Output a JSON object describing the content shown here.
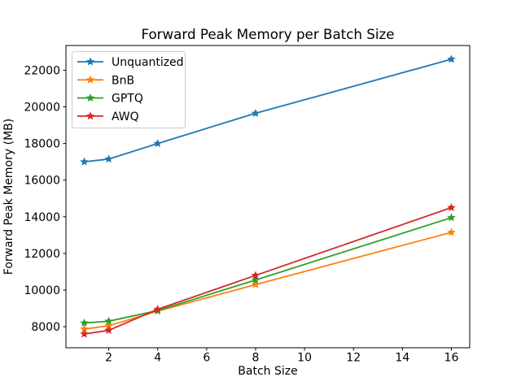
{
  "chart_data": {
    "type": "line",
    "title": "Forward Peak Memory per Batch Size",
    "xlabel": "Batch Size",
    "ylabel": "Forward Peak Memory (MB)",
    "x": [
      1,
      2,
      4,
      8,
      16
    ],
    "series": [
      {
        "name": "Unquantized",
        "color": "#1f77b4",
        "marker": "star",
        "values": [
          17000,
          17150,
          18000,
          19650,
          22600
        ]
      },
      {
        "name": "BnB",
        "color": "#ff7f0e",
        "marker": "star",
        "values": [
          7870,
          8050,
          8850,
          10300,
          13150
        ]
      },
      {
        "name": "GPTQ",
        "color": "#2ca02c",
        "marker": "star",
        "values": [
          8200,
          8300,
          8880,
          10550,
          13950
        ]
      },
      {
        "name": "AWQ",
        "color": "#d62728",
        "marker": "star",
        "values": [
          7600,
          7800,
          8950,
          10800,
          14500
        ]
      }
    ],
    "xlim": [
      0.25,
      16.75
    ],
    "ylim": [
      6850,
      23350
    ],
    "xticks": [
      2,
      4,
      6,
      8,
      10,
      12,
      14,
      16
    ],
    "yticks": [
      8000,
      10000,
      12000,
      14000,
      16000,
      18000,
      20000,
      22000
    ],
    "grid": false,
    "legend_position": "upper left",
    "legend_border_color": "#cccccc",
    "spine_color": "#000000",
    "background_color": "#ffffff"
  }
}
